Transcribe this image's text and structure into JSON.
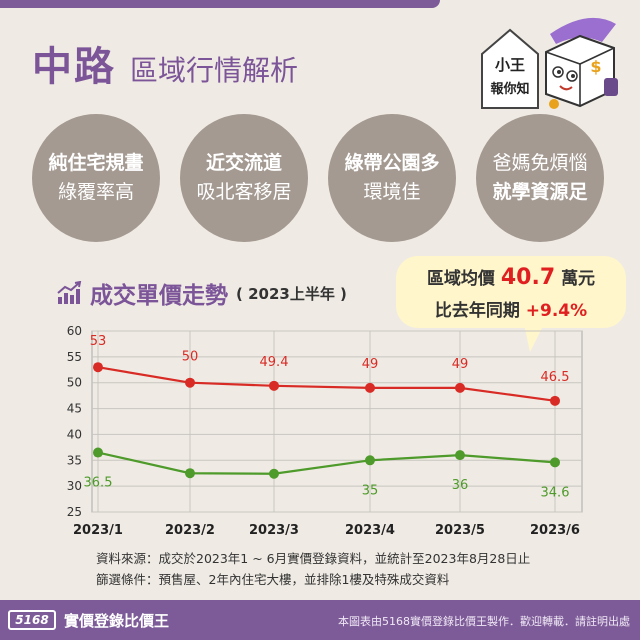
{
  "header": {
    "title_main": "中路",
    "title_sub": "區域行情解析"
  },
  "mascot": {
    "line1": "小王",
    "line2": "報你知"
  },
  "features": [
    {
      "line1": "純住宅規畫",
      "line2": "綠覆率高",
      "bold_line": 1
    },
    {
      "line1": "近交流道",
      "line2": "吸北客移居",
      "bold_line": 1
    },
    {
      "line1": "綠帶公園多",
      "line2": "環境佳",
      "bold_line": 1
    },
    {
      "line1": "爸媽免煩惱",
      "line2": "就學資源足",
      "bold_line": 2
    }
  ],
  "chart_header": {
    "title": "成交單價走勢",
    "period": "( 2023上半年 )"
  },
  "callout": {
    "line1_prefix": "區域均價",
    "line1_value": "40.7",
    "line1_suffix": "萬元",
    "line2_prefix": "比去年同期",
    "line2_value": "+9.4%"
  },
  "chart_data": {
    "type": "line",
    "categories": [
      "2023/1",
      "2023/2",
      "2023/3",
      "2023/4",
      "2023/5",
      "2023/6"
    ],
    "series": [
      {
        "values": [
          53,
          50,
          49.4,
          49,
          49,
          46.5
        ],
        "labels": [
          "53",
          "50",
          "49.4",
          "49",
          "49",
          "46.5"
        ],
        "color": "#d92b25"
      },
      {
        "values": [
          36.5,
          32.5,
          32.4,
          35,
          36,
          34.6
        ],
        "labels": [
          "36.5",
          "",
          "",
          "35",
          "36",
          "34.6"
        ],
        "color": "#4e9a2a"
      }
    ],
    "y_ticks": [
      "60",
      "55",
      "50",
      "45",
      "40",
      "35",
      "30",
      "25"
    ],
    "ylim": [
      25,
      60
    ],
    "grid": true
  },
  "notes": {
    "source": "資料來源：成交於2023年1 ~ 6月實價登錄資料，並統計至2023年8月28日止",
    "filter": "篩選條件：預售屋、2年內住宅大樓，並排除1樓及特殊成交資料"
  },
  "footer": {
    "logo": "5168",
    "brand": "實價登錄比價王",
    "note": "本圖表由5168實價登錄比價王製作．歡迎轉載．請註明出處"
  },
  "colors": {
    "purple": "#7d5b98",
    "circle_bg": "#a49a92",
    "page_bg": "#efebe4",
    "red_series": "#d92b25",
    "green_series": "#4e9a2a",
    "callout_bg": "#fff6cc"
  }
}
